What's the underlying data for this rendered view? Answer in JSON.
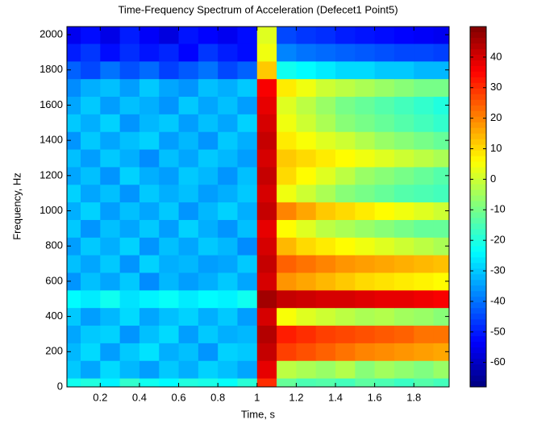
{
  "chart_data": {
    "type": "heatmap",
    "title": "Time-Frequency Spectrum of Acceleration (Defecet1 Point5)",
    "x_label": "Time, s",
    "y_label": "Frequency, Hz",
    "x": [
      0.05,
      0.15,
      0.25,
      0.35,
      0.45,
      0.55,
      0.65,
      0.75,
      0.85,
      0.95,
      1.05,
      1.15,
      1.25,
      1.35,
      1.45,
      1.55,
      1.65,
      1.75,
      1.85,
      1.95
    ],
    "y": [
      0,
      100,
      200,
      300,
      400,
      500,
      600,
      700,
      800,
      900,
      1000,
      1100,
      1200,
      1300,
      1400,
      1500,
      1600,
      1700,
      1800,
      1900,
      2000
    ],
    "z": [
      [
        -22,
        -20,
        -25,
        -18,
        -22,
        -24,
        -20,
        -21,
        -23,
        -19,
        30,
        -12,
        -15,
        -14,
        -16,
        -13,
        -15,
        -17,
        -14,
        -16
      ],
      [
        -30,
        -34,
        -28,
        -32,
        -35,
        -30,
        -33,
        -29,
        -31,
        -34,
        38,
        -2,
        -4,
        -6,
        -3,
        -8,
        -5,
        -7,
        -9,
        -6
      ],
      [
        -32,
        -28,
        -35,
        -30,
        -27,
        -33,
        -31,
        -36,
        -29,
        -30,
        42,
        28,
        26,
        24,
        22,
        20,
        19,
        18,
        17,
        16
      ],
      [
        -34,
        -30,
        -29,
        -36,
        -31,
        -28,
        -35,
        -30,
        -33,
        -32,
        44,
        32,
        30,
        28,
        27,
        26,
        25,
        24,
        22,
        22
      ],
      [
        -30,
        -35,
        -32,
        -28,
        -34,
        -31,
        -29,
        -33,
        -30,
        -35,
        40,
        5,
        2,
        0,
        -2,
        -4,
        -3,
        -5,
        -6,
        -8
      ],
      [
        -24,
        -26,
        -22,
        -27,
        -25,
        -23,
        -26,
        -24,
        -25,
        -22,
        46,
        42,
        41,
        40,
        40,
        39,
        38,
        38,
        37,
        36
      ],
      [
        -36,
        -31,
        -34,
        -30,
        -37,
        -32,
        -35,
        -33,
        -30,
        -34,
        40,
        18,
        16,
        14,
        12,
        10,
        9,
        8,
        7,
        6
      ],
      [
        -31,
        -34,
        -30,
        -36,
        -29,
        -33,
        -32,
        -35,
        -34,
        -30,
        42,
        24,
        22,
        20,
        18,
        17,
        16,
        15,
        14,
        13
      ],
      [
        -35,
        -30,
        -33,
        -29,
        -36,
        -31,
        -34,
        -30,
        -32,
        -37,
        40,
        14,
        10,
        8,
        6,
        4,
        2,
        0,
        -2,
        -4
      ],
      [
        -30,
        -36,
        -31,
        -34,
        -30,
        -35,
        -29,
        -33,
        -36,
        -31,
        38,
        6,
        2,
        -2,
        -4,
        -6,
        -8,
        -10,
        -12,
        -12
      ],
      [
        -33,
        -29,
        -35,
        -31,
        -34,
        -30,
        -36,
        -32,
        -29,
        -33,
        42,
        20,
        16,
        12,
        10,
        8,
        6,
        4,
        2,
        0
      ],
      [
        -29,
        -34,
        -31,
        -36,
        -30,
        -33,
        -31,
        -35,
        -33,
        -30,
        40,
        4,
        0,
        -4,
        -8,
        -10,
        -12,
        -14,
        -15,
        -16
      ],
      [
        -34,
        -31,
        -36,
        -29,
        -33,
        -35,
        -30,
        -32,
        -36,
        -31,
        42,
        10,
        6,
        2,
        -2,
        -6,
        -8,
        -10,
        -12,
        -14
      ],
      [
        -31,
        -35,
        -30,
        -33,
        -37,
        -31,
        -34,
        -30,
        -32,
        -35,
        40,
        12,
        10,
        8,
        6,
        4,
        2,
        0,
        -2,
        -4
      ],
      [
        -36,
        -30,
        -34,
        -31,
        -29,
        -35,
        -32,
        -36,
        -30,
        -33,
        42,
        8,
        5,
        2,
        0,
        -3,
        -6,
        -8,
        -10,
        -12
      ],
      [
        -30,
        -33,
        -29,
        -36,
        -32,
        -30,
        -35,
        -31,
        -34,
        -29,
        40,
        4,
        0,
        -4,
        -8,
        -10,
        -12,
        -14,
        -16,
        -18
      ],
      [
        -34,
        -30,
        -35,
        -31,
        -33,
        -36,
        -30,
        -34,
        -31,
        -35,
        38,
        2,
        -2,
        -6,
        -10,
        -12,
        -14,
        -16,
        -18,
        -20
      ],
      [
        -37,
        -33,
        -31,
        -35,
        -30,
        -34,
        -36,
        -31,
        -33,
        -30,
        36,
        8,
        4,
        0,
        -2,
        -4,
        -6,
        -8,
        -10,
        -10
      ],
      [
        -42,
        -45,
        -40,
        -44,
        -41,
        -46,
        -43,
        -40,
        -45,
        -42,
        12,
        -22,
        -24,
        -26,
        -28,
        -28,
        -30,
        -30,
        -32,
        -32
      ],
      [
        -50,
        -47,
        -52,
        -48,
        -51,
        -49,
        -53,
        -47,
        -50,
        -52,
        4,
        -38,
        -40,
        -41,
        -42,
        -43,
        -44,
        -45,
        -45,
        -46
      ],
      [
        -55,
        -52,
        -56,
        -50,
        -54,
        -57,
        -51,
        -53,
        -55,
        -52,
        2,
        -45,
        -47,
        -48,
        -50,
        -51,
        -52,
        -53,
        -54,
        -55
      ]
    ],
    "xlim": [
      0.03,
      1.98
    ],
    "ylim": [
      0,
      2046
    ],
    "xticks": [
      0.2,
      0.4,
      0.6,
      0.8,
      1,
      1.2,
      1.4,
      1.6,
      1.8
    ],
    "yticks": [
      0,
      200,
      400,
      600,
      800,
      1000,
      1200,
      1400,
      1600,
      1800,
      2000
    ],
    "colormap": "jet",
    "clim": [
      -68,
      50
    ],
    "cticks": [
      -60,
      -50,
      -40,
      -30,
      -20,
      -10,
      0,
      10,
      20,
      30,
      40
    ]
  }
}
